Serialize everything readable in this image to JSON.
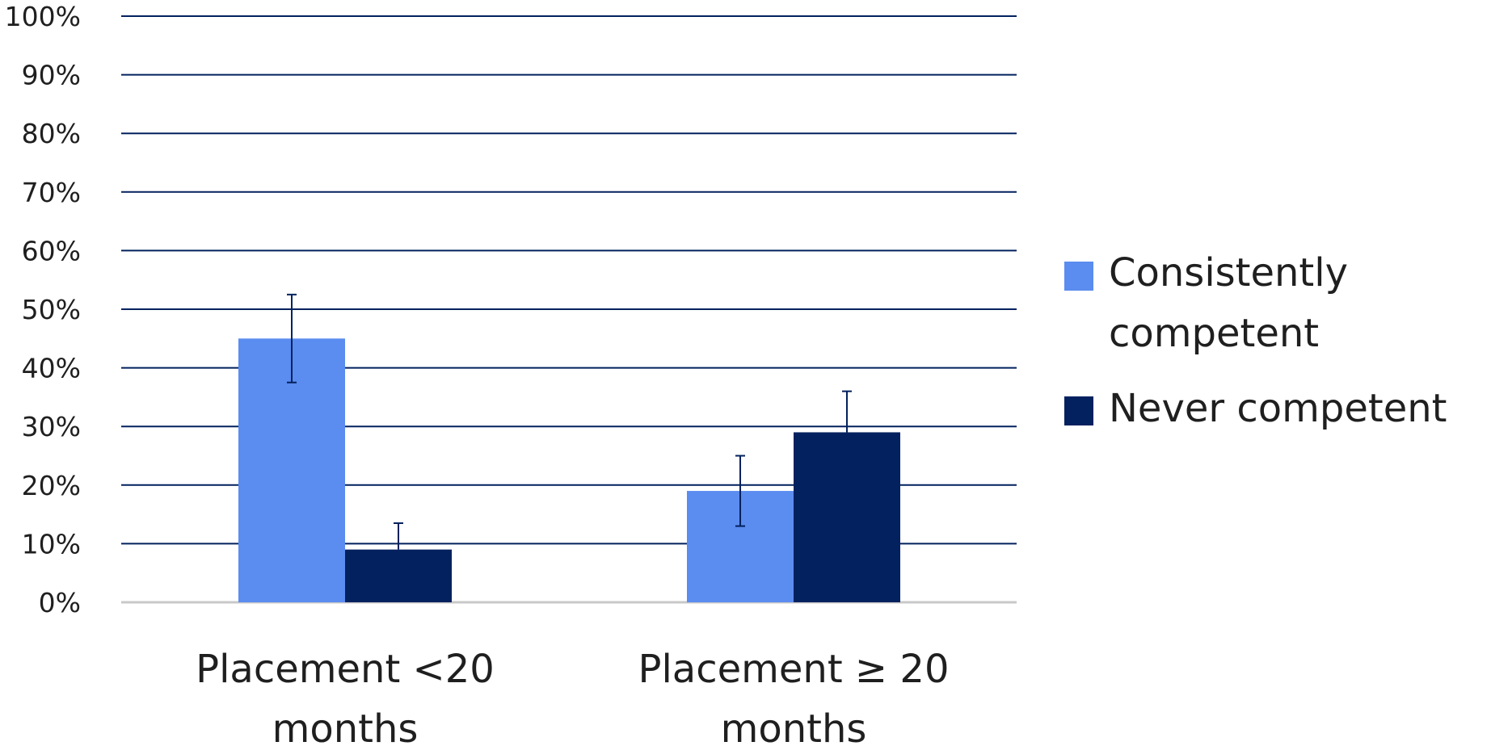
{
  "chart_data": {
    "type": "bar",
    "title": "",
    "xlabel": "",
    "ylabel": "",
    "categories": [
      [
        "Placement <20",
        "months"
      ],
      [
        "Placement ≥ 20",
        "months"
      ]
    ],
    "series": [
      {
        "name": [
          "Consistently",
          "competent"
        ],
        "values": [
          45,
          19
        ],
        "error_low": [
          37.5,
          13
        ],
        "error_high": [
          52.5,
          25
        ],
        "color": "#5b8cef"
      },
      {
        "name": [
          "Never competent"
        ],
        "values": [
          9,
          29
        ],
        "error_low": [
          9,
          29
        ],
        "error_high": [
          13.5,
          36
        ],
        "color": "#02215e"
      }
    ],
    "ylim": [
      0,
      100
    ],
    "yticks": [
      0,
      10,
      20,
      30,
      40,
      50,
      60,
      70,
      80,
      90,
      100
    ],
    "tick_suffix": "%",
    "grid": true,
    "gridline_color": "#02215e",
    "baseline_color": "#c8c8c8",
    "errorbar_color": "#02215e",
    "legend_position": "right"
  }
}
